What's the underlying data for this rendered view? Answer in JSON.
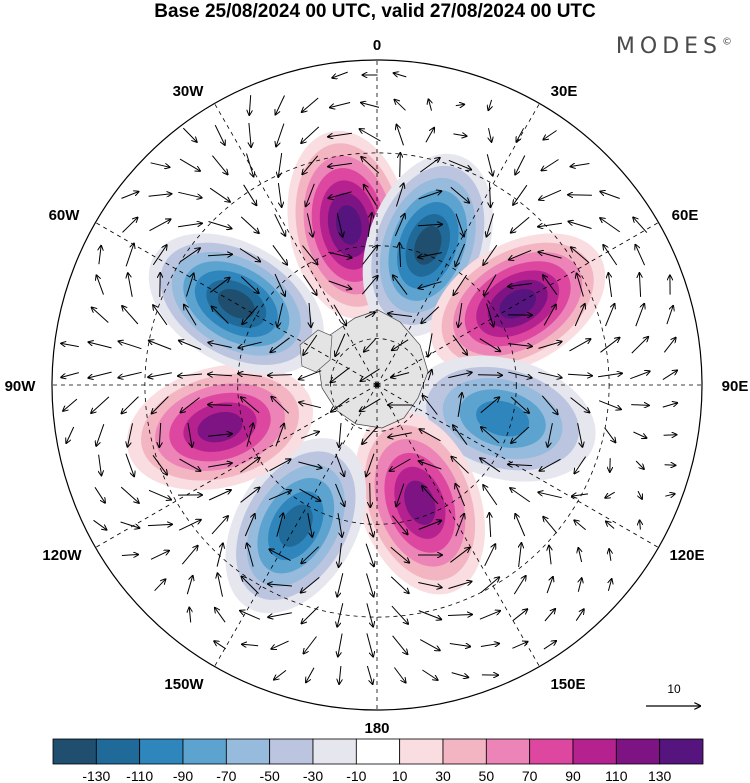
{
  "title": "Base 25/08/2024 00 UTC, valid 27/08/2024 00 UTC",
  "brand": "MODES",
  "brand_mark": "©",
  "longitude_labels": {
    "lon_0": "0",
    "lon_30e": "30E",
    "lon_60e": "60E",
    "lon_90e": "90E",
    "lon_120e": "120E",
    "lon_150e": "150E",
    "lon_180": "180",
    "lon_150w": "150W",
    "lon_120w": "120W",
    "lon_90w": "90W",
    "lon_60w": "60W",
    "lon_30w": "30W"
  },
  "reference_vector": {
    "label": "10",
    "magnitude": 10
  },
  "colorbar": {
    "colors": [
      "#1f4e6e",
      "#1f6a98",
      "#2f86bd",
      "#5da3cf",
      "#96bbdc",
      "#bcc5e0",
      "#e6e6ef",
      "#ffffff",
      "#f9dde0",
      "#f3b5c2",
      "#ec84b8",
      "#dd47a0",
      "#b5218f",
      "#7e1483",
      "#56147e"
    ],
    "tick_labels": [
      "-130",
      "-110",
      "-90",
      "-70",
      "-50",
      "-30",
      "-10",
      "10",
      "30",
      "50",
      "70",
      "90",
      "110",
      "130"
    ]
  },
  "anomaly_centers": [
    {
      "sign": "positive",
      "lon": -10,
      "lat": 55,
      "magnitude": 140
    },
    {
      "sign": "negative",
      "lon": 20,
      "lat": 58,
      "magnitude": 140
    },
    {
      "sign": "positive",
      "lon": 60,
      "lat": 55,
      "magnitude": 130
    },
    {
      "sign": "negative",
      "lon": 105,
      "lat": 62,
      "magnitude": 100
    },
    {
      "sign": "positive",
      "lon": 160,
      "lat": 63,
      "magnitude": 125
    },
    {
      "sign": "negative",
      "lon": -150,
      "lat": 55,
      "magnitude": 110
    },
    {
      "sign": "positive",
      "lon": -105,
      "lat": 55,
      "magnitude": 120
    },
    {
      "sign": "negative",
      "lon": -60,
      "lat": 55,
      "magnitude": 140
    }
  ]
}
